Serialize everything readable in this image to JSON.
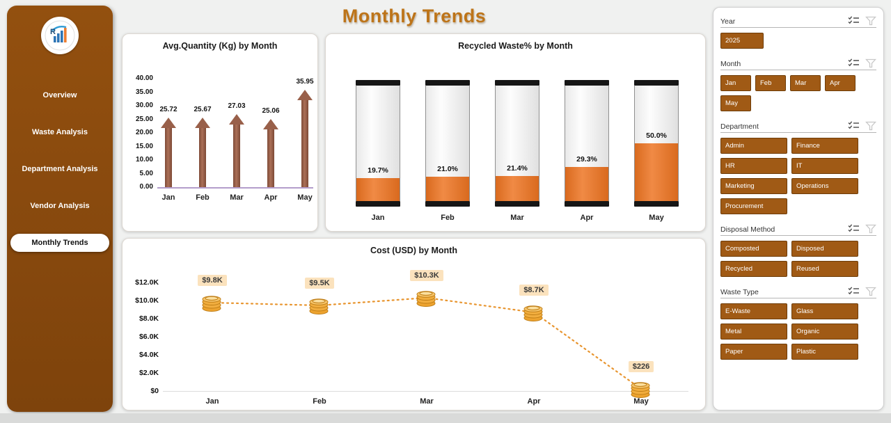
{
  "page": {
    "title": "Monthly Trends"
  },
  "sidebar": {
    "items": [
      "Overview",
      "Waste Analysis",
      "Department Analysis",
      "Vendor Analysis",
      "Monthly Trends"
    ],
    "active_item": "Monthly Trends"
  },
  "chart_data": [
    {
      "type": "bar",
      "variant": "arrow-bar",
      "title": "Avg.Quantity (Kg) by Month",
      "categories": [
        "Jan",
        "Feb",
        "Mar",
        "Apr",
        "May"
      ],
      "values": [
        25.72,
        25.67,
        27.03,
        25.06,
        35.95
      ],
      "data_labels": [
        "25.72",
        "25.67",
        "27.03",
        "25.06",
        "35.95"
      ],
      "ylim": [
        0,
        40
      ],
      "yticks": [
        "40.00",
        "35.00",
        "30.00",
        "25.00",
        "20.00",
        "15.00",
        "10.00",
        "5.00",
        "0.00"
      ],
      "xlabel": "",
      "ylabel": ""
    },
    {
      "type": "bar",
      "variant": "battery-gauge",
      "title": "Recycled Waste% by Month",
      "categories": [
        "Jan",
        "Feb",
        "Mar",
        "Apr",
        "May"
      ],
      "values": [
        19.7,
        21.0,
        21.4,
        29.3,
        50.0
      ],
      "data_labels": [
        "19.7%",
        "21.0%",
        "21.4%",
        "29.3%",
        "50.0%"
      ],
      "ylim": [
        0,
        100
      ],
      "xlabel": "",
      "ylabel": ""
    },
    {
      "type": "line",
      "variant": "dotted-line-coins",
      "title": "Cost (USD) by Month",
      "categories": [
        "Jan",
        "Feb",
        "Mar",
        "Apr",
        "May"
      ],
      "values": [
        9800,
        9500,
        10300,
        8700,
        226
      ],
      "data_labels": [
        "$9.8K",
        "$9.5K",
        "$10.3K",
        "$8.7K",
        "$226"
      ],
      "ylim": [
        0,
        12000
      ],
      "yticks": [
        "$12.0K",
        "$10.0K",
        "$8.0K",
        "$6.0K",
        "$4.0K",
        "$2.0K",
        "$0"
      ],
      "ytick_values": [
        12000,
        10000,
        8000,
        6000,
        4000,
        2000,
        0
      ],
      "xlabel": "",
      "ylabel": ""
    }
  ],
  "filters": {
    "sections": [
      {
        "label": "Year",
        "size": "yr",
        "options": [
          "2025"
        ]
      },
      {
        "label": "Month",
        "size": "sm",
        "options": [
          "Jan",
          "Feb",
          "Mar",
          "Apr",
          "May"
        ]
      },
      {
        "label": "Department",
        "size": "md",
        "options": [
          "Admin",
          "Finance",
          "HR",
          "IT",
          "Marketing",
          "Operations",
          "Procurement"
        ]
      },
      {
        "label": "Disposal Method",
        "size": "md",
        "options": [
          "Composted",
          "Disposed",
          "Recycled",
          "Reused"
        ]
      },
      {
        "label": "Waste Type",
        "size": "md",
        "options": [
          "E-Waste",
          "Glass",
          "Metal",
          "Organic",
          "Paper",
          "Plastic"
        ]
      }
    ],
    "slicer_icons": [
      "select-options-icon",
      "filter-icon"
    ]
  },
  "colors": {
    "sidebar_brown": "#8a4b10",
    "button_brown": "#a05a15",
    "button_border": "#6e3c08",
    "gauge_fill_orange": "#ed7d31",
    "arrow_brown": "#99604a",
    "title_brown": "#bd7419",
    "line_orange": "#e8952f",
    "label_chip_bg": "#fbe2bd"
  }
}
